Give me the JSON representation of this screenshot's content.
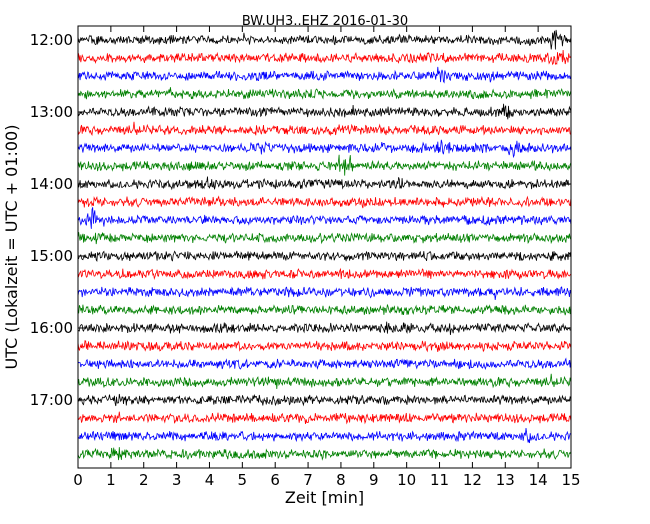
{
  "chart_data": {
    "type": "line",
    "title": "BW.UH3..EHZ 2016-01-30",
    "xlabel": "Zeit  [min]",
    "ylabel": "UTC (Lokalzeit = UTC + 01:00)",
    "xlim": [
      0,
      15
    ],
    "x_ticks": [
      "0",
      "1",
      "2",
      "3",
      "4",
      "5",
      "6",
      "7",
      "8",
      "9",
      "10",
      "11",
      "12",
      "13",
      "14",
      "15"
    ],
    "y_ticks": [
      "12:00",
      "13:00",
      "14:00",
      "15:00",
      "16:00",
      "17:00"
    ],
    "grid": false,
    "legend": "none",
    "trace_colors": [
      "#000000",
      "#ff0000",
      "#0000ff",
      "#008000"
    ],
    "traces_start": "12:00",
    "trace_interval_min": 15,
    "trace_count": 24,
    "events": [
      {
        "trace": 0,
        "x": 14.6,
        "amp": 3.0
      },
      {
        "trace": 1,
        "x": 14.6,
        "amp": 2.6
      },
      {
        "trace": 1,
        "x": 10.5,
        "amp": 1.4
      },
      {
        "trace": 1,
        "x": 2.1,
        "amp": 1.2
      },
      {
        "trace": 2,
        "x": 11.0,
        "amp": 2.0
      },
      {
        "trace": 2,
        "x": 7.7,
        "amp": 1.4
      },
      {
        "trace": 2,
        "x": 5.4,
        "amp": 1.3
      },
      {
        "trace": 4,
        "x": 12.9,
        "amp": 2.4
      },
      {
        "trace": 5,
        "x": 5.6,
        "amp": 1.5
      },
      {
        "trace": 5,
        "x": 10.1,
        "amp": 1.3
      },
      {
        "trace": 6,
        "x": 13.3,
        "amp": 2.3
      },
      {
        "trace": 6,
        "x": 11.1,
        "amp": 1.8
      },
      {
        "trace": 6,
        "x": 5.6,
        "amp": 1.5
      },
      {
        "trace": 7,
        "x": 8.1,
        "amp": 3.3
      },
      {
        "trace": 8,
        "x": 4.0,
        "amp": 1.7
      },
      {
        "trace": 8,
        "x": 9.8,
        "amp": 1.3
      },
      {
        "trace": 9,
        "x": 0.5,
        "amp": 1.5
      },
      {
        "trace": 10,
        "x": 0.5,
        "amp": 2.8
      },
      {
        "trace": 10,
        "x": 12.3,
        "amp": 1.3
      },
      {
        "trace": 11,
        "x": 0.5,
        "amp": 1.4
      },
      {
        "trace": 16,
        "x": 9.6,
        "amp": 1.9
      },
      {
        "trace": 16,
        "x": 3.0,
        "amp": 1.1
      },
      {
        "trace": 17,
        "x": 11.0,
        "amp": 1.4
      },
      {
        "trace": 17,
        "x": 2.6,
        "amp": 1.2
      },
      {
        "trace": 20,
        "x": 1.2,
        "amp": 1.5
      },
      {
        "trace": 21,
        "x": 1.2,
        "amp": 1.4
      },
      {
        "trace": 22,
        "x": 13.7,
        "amp": 1.9
      },
      {
        "trace": 23,
        "x": 1.2,
        "amp": 1.7
      }
    ]
  }
}
